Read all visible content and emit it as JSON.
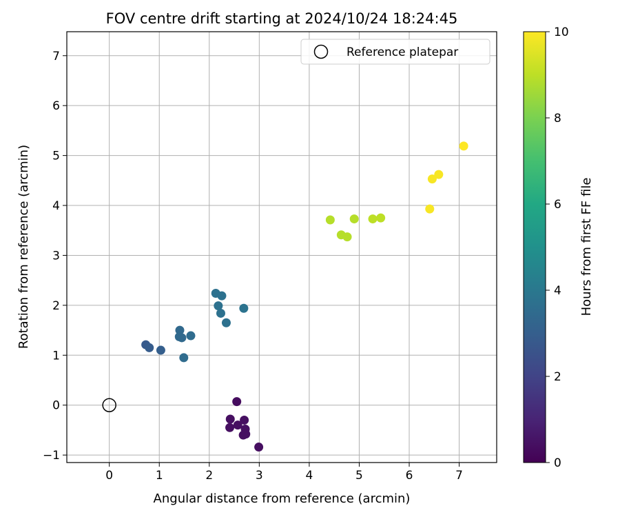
{
  "chart_data": {
    "type": "scatter",
    "title": "FOV centre drift starting at 2024/10/24 18:24:45",
    "xlabel": "Angular distance from reference (arcmin)",
    "ylabel": "Rotation from reference (arcmin)",
    "xlim": [
      -0.85,
      7.75
    ],
    "ylim": [
      -1.15,
      7.48
    ],
    "xticks": [
      0,
      1,
      2,
      3,
      4,
      5,
      6,
      7
    ],
    "yticks": [
      -1,
      0,
      1,
      2,
      3,
      4,
      5,
      6,
      7
    ],
    "grid": true,
    "legend": {
      "placement": "top-right",
      "entries": [
        "Reference platepar"
      ]
    },
    "reference_point": {
      "x": 0,
      "y": 0,
      "label": "Reference platepar"
    },
    "colorbar": {
      "label": "Hours from first FF file",
      "colormap": "viridis",
      "range": [
        0,
        10
      ],
      "ticks": [
        0,
        2,
        4,
        6,
        8,
        10
      ]
    },
    "series": [
      {
        "points": [
          {
            "x": 2.55,
            "y": 0.07,
            "hours": 0.3
          },
          {
            "x": 2.42,
            "y": -0.28,
            "hours": 0.4
          },
          {
            "x": 2.41,
            "y": -0.45,
            "hours": 0.4
          },
          {
            "x": 2.57,
            "y": -0.4,
            "hours": 0.4
          },
          {
            "x": 2.7,
            "y": -0.3,
            "hours": 0.4
          },
          {
            "x": 2.72,
            "y": -0.48,
            "hours": 0.4
          },
          {
            "x": 2.68,
            "y": -0.6,
            "hours": 0.4
          },
          {
            "x": 2.73,
            "y": -0.58,
            "hours": 0.4
          },
          {
            "x": 2.99,
            "y": -0.84,
            "hours": 0.4
          },
          {
            "x": 0.73,
            "y": 1.21,
            "hours": 2.8
          },
          {
            "x": 0.8,
            "y": 1.15,
            "hours": 2.9
          },
          {
            "x": 1.03,
            "y": 1.1,
            "hours": 3.0
          },
          {
            "x": 1.41,
            "y": 1.5,
            "hours": 3.4
          },
          {
            "x": 1.4,
            "y": 1.37,
            "hours": 3.4
          },
          {
            "x": 1.45,
            "y": 1.35,
            "hours": 3.4
          },
          {
            "x": 1.63,
            "y": 1.39,
            "hours": 3.5
          },
          {
            "x": 1.49,
            "y": 0.95,
            "hours": 3.5
          },
          {
            "x": 2.13,
            "y": 2.24,
            "hours": 3.7
          },
          {
            "x": 2.25,
            "y": 2.19,
            "hours": 3.7
          },
          {
            "x": 2.18,
            "y": 1.99,
            "hours": 3.7
          },
          {
            "x": 2.23,
            "y": 1.84,
            "hours": 3.7
          },
          {
            "x": 2.34,
            "y": 1.65,
            "hours": 3.7
          },
          {
            "x": 2.69,
            "y": 1.94,
            "hours": 3.8
          },
          {
            "x": 4.42,
            "y": 3.71,
            "hours": 8.9
          },
          {
            "x": 4.9,
            "y": 3.73,
            "hours": 8.9
          },
          {
            "x": 4.64,
            "y": 3.41,
            "hours": 8.9
          },
          {
            "x": 4.76,
            "y": 3.37,
            "hours": 8.9
          },
          {
            "x": 5.27,
            "y": 3.73,
            "hours": 9.0
          },
          {
            "x": 5.43,
            "y": 3.75,
            "hours": 9.0
          },
          {
            "x": 6.41,
            "y": 3.93,
            "hours": 9.9
          },
          {
            "x": 6.46,
            "y": 4.53,
            "hours": 9.9
          },
          {
            "x": 6.59,
            "y": 4.62,
            "hours": 9.9
          },
          {
            "x": 7.09,
            "y": 5.19,
            "hours": 10.0
          }
        ]
      }
    ]
  }
}
